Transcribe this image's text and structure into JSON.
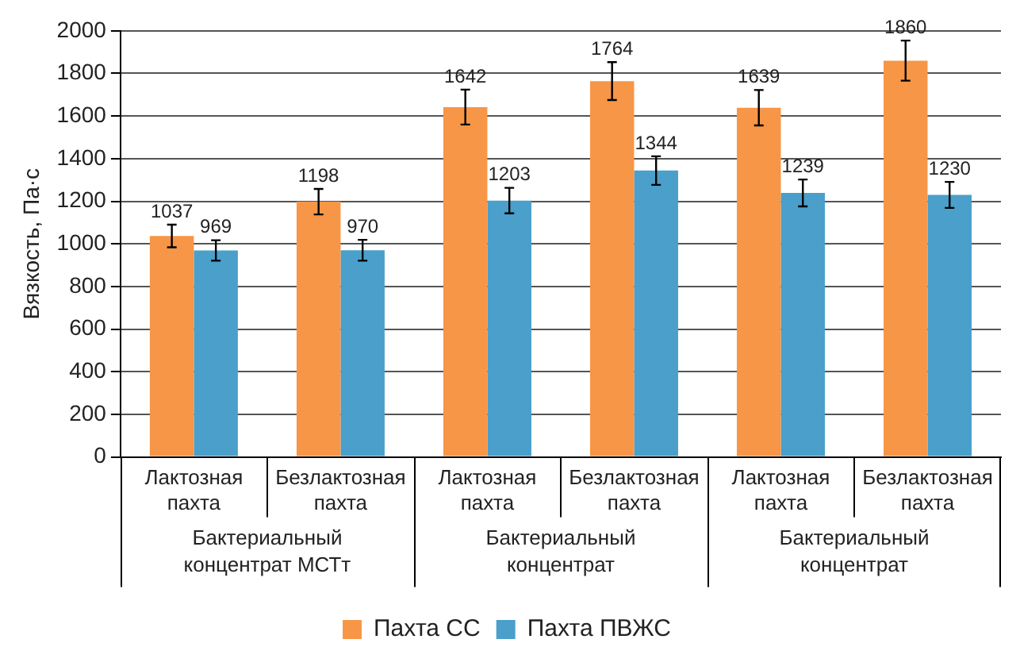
{
  "chart_data": {
    "type": "bar",
    "ylabel": "Вязкость, Па·с",
    "categories": [
      "Лактозная пахта",
      "Безлактозная пахта",
      "Лактозная пахта",
      "Безлактозная пахта",
      "Лактозная пахта",
      "Безлактозная пахта"
    ],
    "series": [
      {
        "name": "Пахта СС",
        "color": "#f79646",
        "values": [
          1037,
          1198,
          1642,
          1764,
          1639,
          1860
        ],
        "errors": [
          53,
          60,
          82,
          89,
          83,
          94
        ]
      },
      {
        "name": "Пахта ПВЖС",
        "color": "#4a9fcb",
        "values": [
          969,
          970,
          1203,
          1344,
          1239,
          1230
        ],
        "errors": [
          48,
          49,
          60,
          67,
          63,
          61
        ]
      }
    ],
    "ylim": [
      0,
      2000
    ],
    "yticks": [
      0,
      200,
      400,
      600,
      800,
      1000,
      1200,
      1400,
      1600,
      1800,
      2000
    ],
    "grid": "y",
    "legend": "bottom",
    "data_labels": true,
    "annotations": [
      "Бактериальный концентрат МСТт",
      "Бактериальный концентрат",
      "Бактериальный концентрат"
    ]
  }
}
